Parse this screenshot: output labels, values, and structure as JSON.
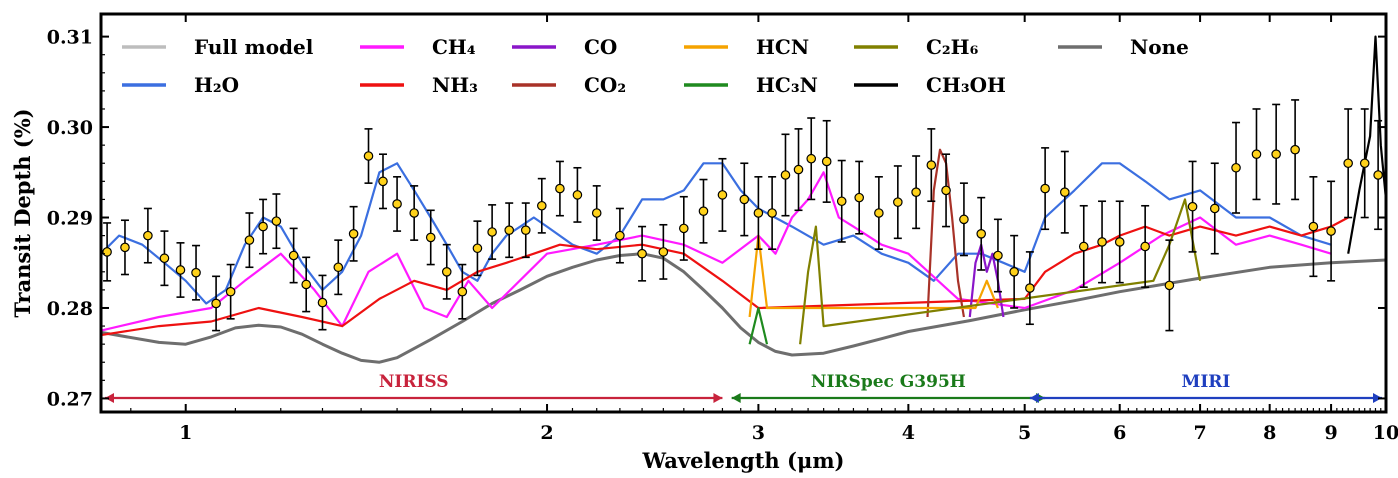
{
  "chart_data": {
    "type": "line",
    "xlabel": "Wavelength (μm)",
    "ylabel": "Transit Depth (%)",
    "x_scale": "log",
    "xlim": [
      0.85,
      10.0
    ],
    "ylim": [
      0.2685,
      0.3125
    ],
    "x_ticks": [
      {
        "value": 1,
        "label": "1"
      },
      {
        "value": 2,
        "label": "2"
      },
      {
        "value": 3,
        "label": "3"
      },
      {
        "value": 4,
        "label": "4"
      },
      {
        "value": 5,
        "label": "5"
      },
      {
        "value": 6,
        "label": "6"
      },
      {
        "value": 7,
        "label": "7"
      },
      {
        "value": 8,
        "label": "8"
      },
      {
        "value": 9,
        "label": "9"
      },
      {
        "value": 10,
        "label": "10"
      }
    ],
    "y_ticks": [
      {
        "value": 0.27,
        "label": "0.27"
      },
      {
        "value": 0.28,
        "label": "0.28"
      },
      {
        "value": 0.29,
        "label": "0.29"
      },
      {
        "value": 0.3,
        "label": "0.30"
      },
      {
        "value": 0.31,
        "label": "0.31"
      }
    ],
    "legend_position": "top",
    "legend": [
      {
        "text": "Full model",
        "color": "#bdbdbd"
      },
      {
        "text": "CH₄",
        "color": "#ff1aff"
      },
      {
        "text": "CO",
        "color": "#8a16c9"
      },
      {
        "text": "HCN",
        "color": "#f5a300"
      },
      {
        "text": "C₂H₆",
        "color": "#808000"
      },
      {
        "text": "None",
        "color": "#6e6e6e"
      },
      {
        "text": "H₂O",
        "color": "#3b6fe0"
      },
      {
        "text": "NH₃",
        "color": "#ee1111"
      },
      {
        "text": "CO₂",
        "color": "#a83228"
      },
      {
        "text": "HC₃N",
        "color": "#1f8a1f"
      },
      {
        "text": "CH₃OH",
        "color": "#000000"
      }
    ],
    "instrument_ranges": [
      {
        "label": "NIRISS",
        "x_start": 0.85,
        "x_end": 2.8,
        "color": "#c8233c"
      },
      {
        "label": "NIRSpec G395H",
        "x_start": 2.85,
        "x_end": 5.2,
        "color": "#1a7a1a"
      },
      {
        "label": "MIRI",
        "x_start": 5.05,
        "x_end": 10.0,
        "color": "#1f3fbf"
      }
    ],
    "series": [
      {
        "name": "None",
        "color": "#6e6e6e",
        "x": [
          0.85,
          0.95,
          1.0,
          1.05,
          1.1,
          1.15,
          1.2,
          1.25,
          1.3,
          1.35,
          1.4,
          1.45,
          1.5,
          1.6,
          1.7,
          1.8,
          1.9,
          2.0,
          2.1,
          2.2,
          2.3,
          2.4,
          2.5,
          2.6,
          2.7,
          2.8,
          2.9,
          3.0,
          3.1,
          3.2,
          3.4,
          3.6,
          3.8,
          4.0,
          4.5,
          5.0,
          5.5,
          6.0,
          7.0,
          8.0,
          9.0,
          10.0
        ],
        "y": [
          0.2773,
          0.2762,
          0.276,
          0.2768,
          0.2778,
          0.2781,
          0.2779,
          0.2771,
          0.276,
          0.275,
          0.2742,
          0.274,
          0.2745,
          0.2765,
          0.2785,
          0.2805,
          0.282,
          0.2835,
          0.2845,
          0.2853,
          0.2858,
          0.286,
          0.2855,
          0.284,
          0.282,
          0.28,
          0.2778,
          0.2762,
          0.2752,
          0.2748,
          0.275,
          0.2758,
          0.2766,
          0.2774,
          0.2786,
          0.2798,
          0.2808,
          0.2818,
          0.2833,
          0.2845,
          0.285,
          0.2853
        ]
      },
      {
        "name": "H₂O",
        "color": "#3b6fe0",
        "x": [
          0.85,
          0.88,
          0.92,
          0.96,
          1.0,
          1.04,
          1.08,
          1.12,
          1.16,
          1.2,
          1.25,
          1.3,
          1.35,
          1.4,
          1.45,
          1.5,
          1.55,
          1.6,
          1.65,
          1.7,
          1.75,
          1.8,
          1.85,
          1.9,
          1.95,
          2.0,
          2.1,
          2.2,
          2.3,
          2.4,
          2.5,
          2.6,
          2.7,
          2.8,
          2.9,
          3.0,
          3.2,
          3.4,
          3.6,
          3.8,
          4.0,
          4.2,
          4.4,
          4.6,
          4.8,
          5.0,
          5.2,
          5.5,
          5.8,
          6.0,
          6.3,
          6.6,
          7.0,
          7.5,
          8.0,
          8.5,
          9.0
        ],
        "y": [
          0.286,
          0.288,
          0.287,
          0.285,
          0.283,
          0.2805,
          0.282,
          0.287,
          0.29,
          0.289,
          0.285,
          0.282,
          0.284,
          0.288,
          0.295,
          0.296,
          0.293,
          0.29,
          0.287,
          0.284,
          0.283,
          0.286,
          0.288,
          0.289,
          0.29,
          0.289,
          0.287,
          0.286,
          0.288,
          0.292,
          0.292,
          0.293,
          0.296,
          0.296,
          0.293,
          0.291,
          0.289,
          0.287,
          0.288,
          0.286,
          0.285,
          0.283,
          0.286,
          0.286,
          0.285,
          0.284,
          0.29,
          0.293,
          0.296,
          0.296,
          0.294,
          0.292,
          0.293,
          0.29,
          0.29,
          0.288,
          0.287
        ]
      },
      {
        "name": "CH₄",
        "color": "#ff1aff",
        "x": [
          0.85,
          0.95,
          1.05,
          1.12,
          1.2,
          1.28,
          1.35,
          1.42,
          1.5,
          1.58,
          1.65,
          1.72,
          1.8,
          2.0,
          2.2,
          2.4,
          2.6,
          2.8,
          3.0,
          3.1,
          3.2,
          3.3,
          3.4,
          3.5,
          3.6,
          3.8,
          4.0,
          4.4,
          5.0,
          5.5,
          6.0,
          6.5,
          7.0,
          7.5,
          8.0,
          8.5,
          9.0
        ],
        "y": [
          0.2775,
          0.279,
          0.28,
          0.283,
          0.286,
          0.282,
          0.278,
          0.284,
          0.286,
          0.28,
          0.279,
          0.283,
          0.28,
          0.286,
          0.287,
          0.288,
          0.287,
          0.285,
          0.288,
          0.286,
          0.29,
          0.292,
          0.295,
          0.29,
          0.289,
          0.287,
          0.286,
          0.281,
          0.28,
          0.282,
          0.285,
          0.288,
          0.29,
          0.287,
          0.288,
          0.287,
          0.286
        ]
      },
      {
        "name": "NH₃",
        "color": "#ee1111",
        "x": [
          0.85,
          0.95,
          1.05,
          1.15,
          1.25,
          1.35,
          1.45,
          1.55,
          1.65,
          1.75,
          1.85,
          1.95,
          2.05,
          2.2,
          2.4,
          2.6,
          2.8,
          3.0,
          5.0,
          5.2,
          5.5,
          5.8,
          6.0,
          6.3,
          6.6,
          7.0,
          7.5,
          8.0,
          8.5,
          9.0,
          9.3
        ],
        "y": [
          0.277,
          0.278,
          0.2785,
          0.28,
          0.279,
          0.278,
          0.281,
          0.283,
          0.282,
          0.284,
          0.285,
          0.286,
          0.287,
          0.2865,
          0.287,
          0.286,
          0.283,
          0.28,
          0.281,
          0.284,
          0.286,
          0.287,
          0.288,
          0.289,
          0.288,
          0.289,
          0.288,
          0.289,
          0.288,
          0.289,
          0.29
        ]
      },
      {
        "name": "CO₂",
        "color": "#a83228",
        "x": [
          4.15,
          4.2,
          4.25,
          4.3,
          4.35,
          4.4,
          4.45
        ],
        "y": [
          0.279,
          0.293,
          0.2975,
          0.296,
          0.29,
          0.283,
          0.279
        ]
      },
      {
        "name": "CO",
        "color": "#8a16c9",
        "x": [
          4.5,
          4.55,
          4.6,
          4.65,
          4.7,
          4.75,
          4.8
        ],
        "y": [
          0.279,
          0.285,
          0.287,
          0.284,
          0.286,
          0.283,
          0.279
        ]
      },
      {
        "name": "HCN",
        "color": "#f5a300",
        "x": [
          2.95,
          3.0,
          3.05,
          4.55,
          4.65,
          4.75
        ],
        "y": [
          0.279,
          0.288,
          0.28,
          0.28,
          0.283,
          0.28
        ]
      },
      {
        "name": "HC₃N",
        "color": "#1f8a1f",
        "x": [
          2.95,
          3.0,
          3.05
        ],
        "y": [
          0.276,
          0.28,
          0.276
        ]
      },
      {
        "name": "C₂H₆",
        "color": "#808000",
        "x": [
          3.25,
          3.3,
          3.35,
          3.4,
          6.4,
          6.6,
          6.8,
          7.0
        ],
        "y": [
          0.276,
          0.284,
          0.289,
          0.278,
          0.283,
          0.287,
          0.292,
          0.283
        ]
      },
      {
        "name": "CH₃OH",
        "color": "#000000",
        "x": [
          9.3,
          9.5,
          9.7,
          9.8,
          9.9,
          10.0
        ],
        "y": [
          0.286,
          0.293,
          0.299,
          0.31,
          0.298,
          0.292
        ]
      }
    ],
    "observations": {
      "x": [
        0.86,
        0.89,
        0.93,
        0.96,
        0.99,
        1.02,
        1.06,
        1.09,
        1.13,
        1.16,
        1.19,
        1.23,
        1.26,
        1.3,
        1.34,
        1.38,
        1.42,
        1.46,
        1.5,
        1.55,
        1.6,
        1.65,
        1.7,
        1.75,
        1.8,
        1.86,
        1.92,
        1.98,
        2.05,
        2.12,
        2.2,
        2.3,
        2.4,
        2.5,
        2.6,
        2.7,
        2.8,
        2.92,
        3.0,
        3.08,
        3.16,
        3.24,
        3.32,
        3.42,
        3.52,
        3.64,
        3.78,
        3.92,
        4.06,
        4.18,
        4.3,
        4.45,
        4.6,
        4.75,
        4.9,
        5.05,
        5.2,
        5.4,
        5.6,
        5.8,
        6.0,
        6.3,
        6.6,
        6.9,
        7.2,
        7.5,
        7.8,
        8.1,
        8.4,
        8.7,
        9.0,
        9.3,
        9.6,
        9.85
      ],
      "y": [
        0.2862,
        0.2867,
        0.288,
        0.2855,
        0.2842,
        0.2839,
        0.2805,
        0.2818,
        0.2875,
        0.289,
        0.2896,
        0.2858,
        0.2826,
        0.2806,
        0.2845,
        0.2882,
        0.2968,
        0.294,
        0.2915,
        0.2905,
        0.2878,
        0.284,
        0.2818,
        0.2866,
        0.2884,
        0.2886,
        0.2886,
        0.2913,
        0.2932,
        0.2925,
        0.2905,
        0.288,
        0.286,
        0.2862,
        0.2888,
        0.2907,
        0.2925,
        0.292,
        0.2905,
        0.2905,
        0.2947,
        0.2953,
        0.2965,
        0.2962,
        0.2918,
        0.2922,
        0.2905,
        0.2917,
        0.2928,
        0.2958,
        0.293,
        0.2898,
        0.2882,
        0.2858,
        0.284,
        0.2822,
        0.2932,
        0.2928,
        0.2868,
        0.2873,
        0.2873,
        0.2868,
        0.2825,
        0.2912,
        0.291,
        0.2955,
        0.297,
        0.297,
        0.2975,
        0.289,
        0.2885,
        0.296,
        0.296,
        0.2947
      ],
      "err": [
        0.0032,
        0.003,
        0.003,
        0.003,
        0.003,
        0.003,
        0.003,
        0.003,
        0.003,
        0.003,
        0.003,
        0.003,
        0.003,
        0.003,
        0.003,
        0.003,
        0.003,
        0.003,
        0.003,
        0.003,
        0.003,
        0.003,
        0.003,
        0.003,
        0.003,
        0.003,
        0.003,
        0.003,
        0.003,
        0.003,
        0.003,
        0.003,
        0.003,
        0.003,
        0.0035,
        0.0035,
        0.004,
        0.004,
        0.004,
        0.004,
        0.0045,
        0.0045,
        0.0045,
        0.0045,
        0.0045,
        0.004,
        0.004,
        0.004,
        0.004,
        0.004,
        0.004,
        0.004,
        0.004,
        0.004,
        0.004,
        0.004,
        0.0045,
        0.0045,
        0.0045,
        0.0045,
        0.0045,
        0.0045,
        0.005,
        0.005,
        0.005,
        0.005,
        0.005,
        0.0055,
        0.0055,
        0.0055,
        0.0055,
        0.006,
        0.006,
        0.006
      ],
      "marker_color": "#ffd21a"
    }
  }
}
